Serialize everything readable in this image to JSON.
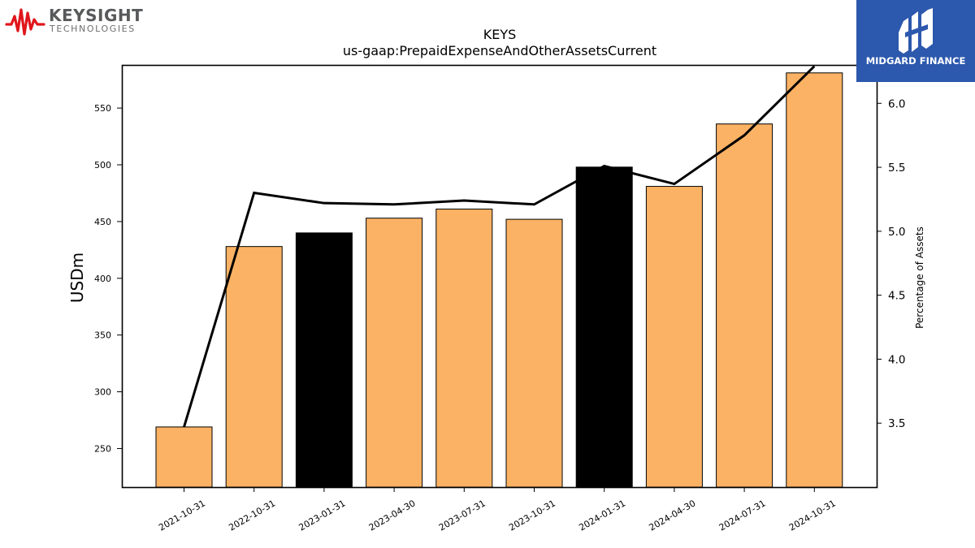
{
  "logos": {
    "left": {
      "name": "KEYSIGHT",
      "tagline": "TECHNOLOGIES",
      "color": "#e0161c"
    },
    "right": {
      "name": "MIDGARD FINANCE",
      "background": "#2c58ad"
    }
  },
  "chart_data": {
    "type": "bar",
    "title": "KEYS",
    "subtitle": "us-gaap:PrepaidExpenseAndOtherAssetsCurrent",
    "ylabel": "USDm",
    "y2label": "Percentage of Assets",
    "categories": [
      "2021-10-31",
      "2022-10-31",
      "2023-01-31",
      "2023-04-30",
      "2023-07-31",
      "2023-10-31",
      "2024-01-31",
      "2024-04-30",
      "2024-07-31",
      "2024-10-31"
    ],
    "ylim": [
      216,
      588
    ],
    "yticks": [
      250,
      300,
      350,
      400,
      450,
      500,
      550
    ],
    "y2lim": [
      3.0,
      6.3
    ],
    "y2ticks": [
      3.5,
      4.0,
      4.5,
      5.0,
      5.5,
      6.0
    ],
    "series": [
      {
        "type": "bar",
        "values": [
          269,
          428,
          440,
          453,
          461,
          452,
          498,
          481,
          536,
          581
        ],
        "colors": [
          "#fbb264",
          "#fbb264",
          "#000000",
          "#fbb264",
          "#fbb264",
          "#fbb264",
          "#000000",
          "#fbb264",
          "#fbb264",
          "#fbb264"
        ],
        "axis": "left"
      },
      {
        "type": "line",
        "values": [
          3.47,
          5.3,
          5.22,
          5.21,
          5.24,
          5.21,
          5.51,
          5.37,
          5.75,
          6.29
        ],
        "color": "#000000",
        "axis": "right"
      }
    ],
    "grid": false,
    "legend": "none"
  }
}
